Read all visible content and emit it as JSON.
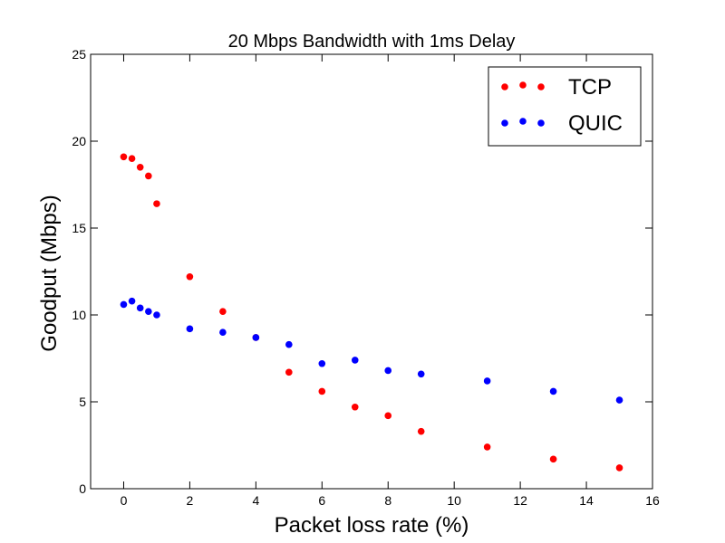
{
  "chart_data": {
    "type": "scatter",
    "title": "20 Mbps Bandwidth with 1ms Delay",
    "xlabel": "Packet loss rate (%)",
    "ylabel": "Goodput (Mbps)",
    "xlim": [
      -1,
      16
    ],
    "ylim": [
      0,
      25
    ],
    "xticks": [
      0,
      2,
      4,
      6,
      8,
      10,
      12,
      14,
      16
    ],
    "yticks": [
      0,
      5,
      10,
      15,
      20,
      25
    ],
    "grid": false,
    "legend_position": "top-right",
    "series": [
      {
        "name": "TCP",
        "color": "#ff0000",
        "x": [
          0,
          0.25,
          0.5,
          0.75,
          1,
          2,
          3,
          4,
          5,
          6,
          7,
          8,
          9,
          11,
          13,
          15
        ],
        "y": [
          19.1,
          19.0,
          18.5,
          18.0,
          16.4,
          12.2,
          10.2,
          8.7,
          6.7,
          5.6,
          4.7,
          4.2,
          3.3,
          2.4,
          1.7,
          1.2
        ]
      },
      {
        "name": "QUIC",
        "color": "#0000ff",
        "x": [
          0,
          0.25,
          0.5,
          0.75,
          1,
          2,
          3,
          4,
          5,
          6,
          7,
          8,
          9,
          11,
          13,
          15
        ],
        "y": [
          10.6,
          10.8,
          10.4,
          10.2,
          10.0,
          9.2,
          9.0,
          8.7,
          8.3,
          7.2,
          7.4,
          6.8,
          6.6,
          6.2,
          5.6,
          5.1
        ]
      }
    ]
  }
}
